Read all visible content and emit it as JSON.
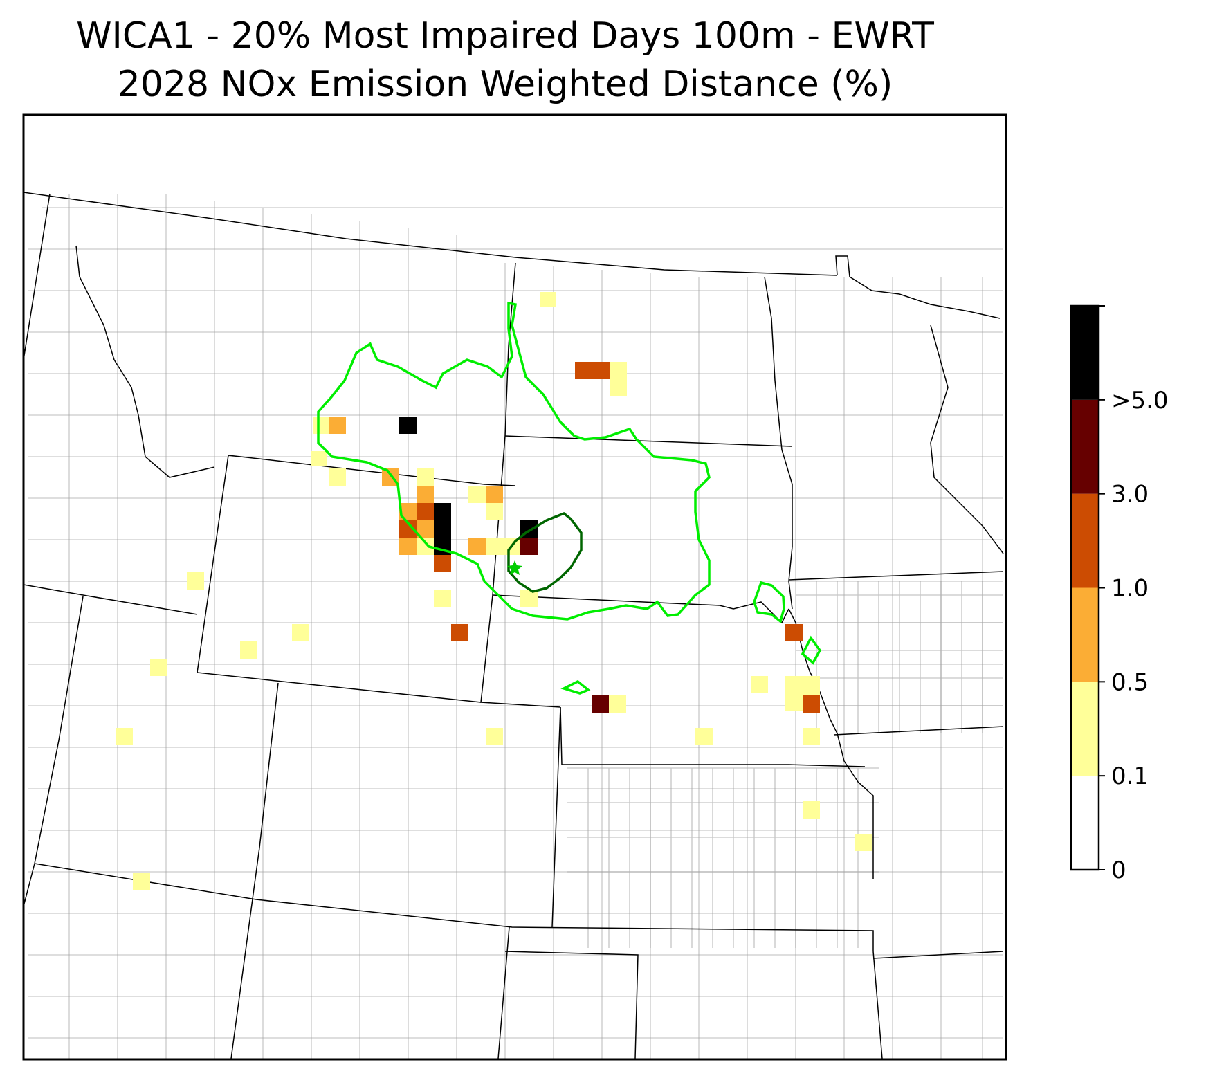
{
  "title": {
    "line1": "WICA1 - 20% Most Impaired Days 100m - EWRT",
    "line2": "2028 NOx Emission Weighted Distance (%)"
  },
  "colorbar": {
    "labels": [
      "0",
      "0.1",
      "0.5",
      "1.0",
      "3.0",
      ">5.0"
    ],
    "bins": [
      {
        "range": "0-0.1",
        "color": "#ffffff"
      },
      {
        "range": "0.1-0.5",
        "color": "#ffff99"
      },
      {
        "range": "0.5-1.0",
        "color": "#fbad35"
      },
      {
        "range": "1.0-3.0",
        "color": "#cc4c02"
      },
      {
        "range": "3.0-5.0",
        "color": "#660000"
      },
      {
        "range": ">5.0",
        "color": "#000000"
      }
    ]
  },
  "contours": {
    "outer_color": "#00ee00",
    "inner_color": "#006600"
  },
  "site_marker": {
    "symbol": "star",
    "color": "#00cc00"
  },
  "colors": {
    "state_border": "#000000",
    "county_border": "#9e9e9e"
  }
}
